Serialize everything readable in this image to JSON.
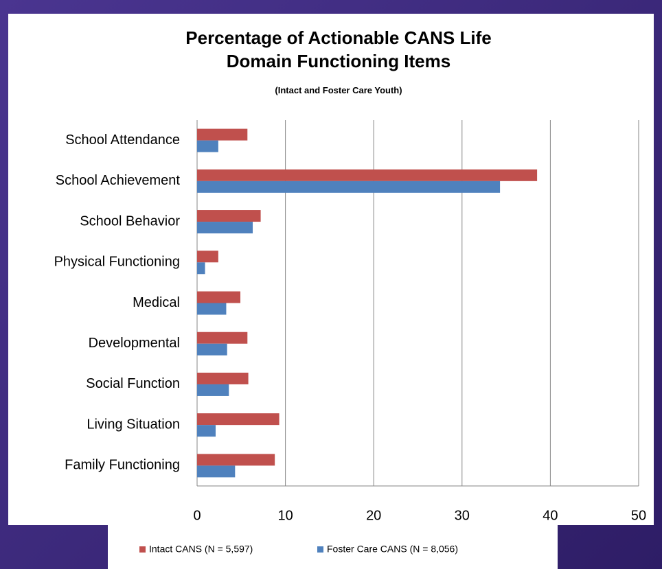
{
  "chart_data": {
    "type": "bar",
    "orientation": "horizontal",
    "title": "Percentage of Actionable CANS Life Domain Functioning Items",
    "subtitle": "(Intact and Foster Care Youth)",
    "categories": [
      "School Attendance",
      "School Achievement",
      "School Behavior",
      "Physical Functioning",
      "Medical",
      "Developmental",
      "Social Function",
      "Living Situation",
      "Family Functioning"
    ],
    "series": [
      {
        "name": "Intact CANS (N = 5,597)",
        "color": "#c0504d",
        "values": [
          5.7,
          38.5,
          7.2,
          2.4,
          4.9,
          5.7,
          5.8,
          9.3,
          8.8
        ]
      },
      {
        "name": "Foster Care CANS (N = 8,056)",
        "color": "#4f81bd",
        "values": [
          2.4,
          34.3,
          6.3,
          0.9,
          3.3,
          3.4,
          3.6,
          2.1,
          4.3
        ]
      }
    ],
    "xlim": [
      0,
      50
    ],
    "xticks": [
      0,
      10,
      20,
      30,
      40,
      50
    ],
    "grid": true,
    "legend": "bottom"
  }
}
